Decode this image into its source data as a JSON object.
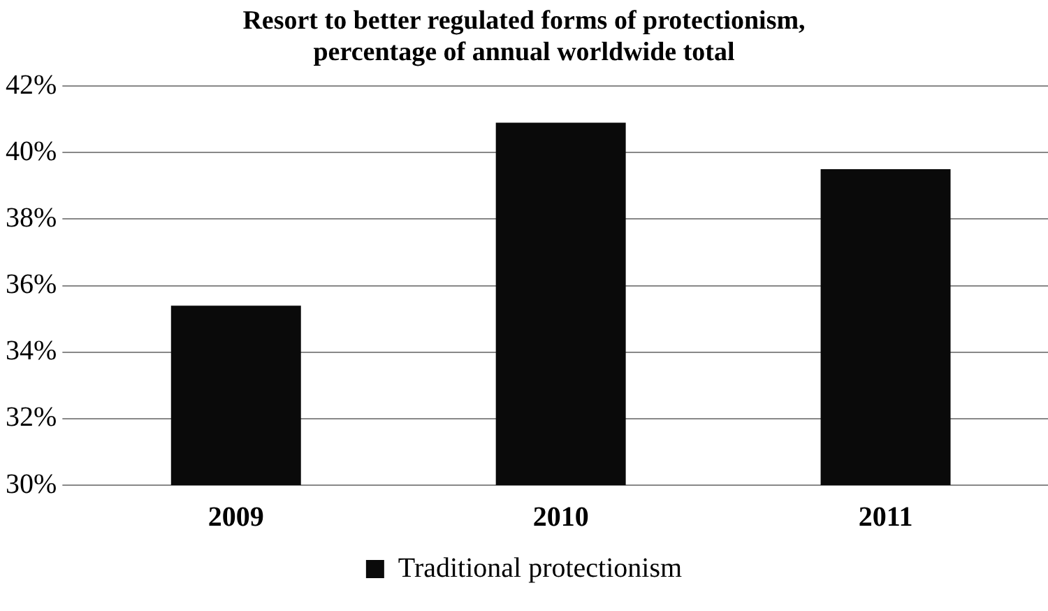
{
  "chart_data": {
    "type": "bar",
    "title": [
      "Resort to better regulated forms of protectionism,",
      "percentage of annual worldwide total"
    ],
    "categories": [
      "2009",
      "2010",
      "2011"
    ],
    "series": [
      {
        "name": "Traditional protectionism",
        "color": "#0a0a0a",
        "values": [
          35.4,
          40.9,
          39.5
        ]
      }
    ],
    "ylim": [
      30,
      42
    ],
    "yticks": [
      {
        "value": 30,
        "label": "30%"
      },
      {
        "value": 32,
        "label": "32%"
      },
      {
        "value": 34,
        "label": "34%"
      },
      {
        "value": 36,
        "label": "36%"
      },
      {
        "value": 38,
        "label": "38%"
      },
      {
        "value": 40,
        "label": "40%"
      },
      {
        "value": 42,
        "label": "42%"
      }
    ],
    "grid": "y",
    "legend": "bottom"
  }
}
